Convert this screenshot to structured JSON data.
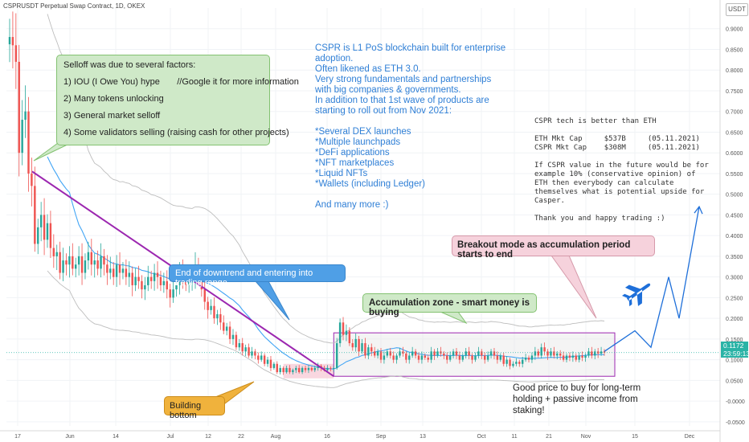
{
  "header": {
    "title": "CSPRUSDT Perpetual Swap Contract, 1D, OKEX"
  },
  "price_scale": {
    "currency": "USDT",
    "last_price": "0.1172",
    "countdown": "23:59:13"
  },
  "colors": {
    "up": "#26a69a",
    "down": "#ef5350",
    "trendline": "#9c27b0",
    "ma": "#42a5f5",
    "band": "#bdbdbd",
    "arrow": "#1e6fd9"
  },
  "annotations": {
    "selloff": {
      "title": "Selloff was due to several factors:",
      "items": [
        "1) IOU (I Owe You) hype       //Google it for more information",
        "2) Many tokens unlocking",
        "3) General market selloff",
        "4) Some validators selling (raising cash for other projects)"
      ]
    },
    "end_downtrend": "End of downtrend and entering into trading range",
    "building_bottom": "Building bottom",
    "accumulation": "Accumulation zone - smart money is buying",
    "breakout": "Breakout mode as accumulation period starts to end",
    "cspr_info": [
      "CSPR is L1 PoS blockchain built for enterprise",
      "adoption.",
      "Often likened as ETH 3.0.",
      "Very strong fundamentals and partnerships",
      "with big companies & governments.",
      "In addition to that 1st wave of products are",
      "starting to roll out from Nov 2021:",
      "",
      "*Several DEX launches",
      "*Multiple launchpads",
      "*DeFi applications",
      "*NFT marketplaces",
      "*Liquid NFTs",
      "*Wallets (including Ledger)",
      "",
      "And many more :)"
    ],
    "tech_note": [
      "CSPR tech is better than ETH",
      "",
      "ETH Mkt Cap     $537B     (05.11.2021)",
      "CSPR Mkt Cap    $308M     (05.11.2021)",
      "",
      "If CSPR value in the future would be for",
      "example 10% (conservative opinion) of",
      "ETH then everybody can calculate",
      "themselves what is potential upside for",
      "Casper.",
      "",
      "Thank you and happy trading :)"
    ],
    "good_price": [
      "Good price to buy for long-term",
      "holding + passive income from",
      "staking!"
    ]
  },
  "chart_data": {
    "type": "candlestick",
    "title": "CSPRUSDT Perpetual Swap Contract, 1D, OKEX",
    "x_ticks": [
      "17",
      "Jun",
      "14",
      "Jul",
      "12",
      "22",
      "Aug",
      "16",
      "Sep",
      "13",
      "Oct",
      "11",
      "21",
      "Nov",
      "15",
      "Dec"
    ],
    "y_ticks": [
      "0.9000",
      "0.8500",
      "0.8000",
      "0.7500",
      "0.7000",
      "0.6500",
      "0.6000",
      "0.5500",
      "0.5000",
      "0.4500",
      "0.4000",
      "0.3500",
      "0.3000",
      "0.2500",
      "0.2000",
      "0.1500",
      "0.1000",
      "0.0500",
      "-0.0000",
      "-0.0500"
    ],
    "ylim": [
      -0.06,
      0.95
    ],
    "last_price": 0.1172,
    "accumulation_range": [
      0.06,
      0.165
    ],
    "projection": [
      0.12,
      0.17,
      0.13,
      0.3,
      0.2,
      0.47
    ],
    "closes": [
      0.88,
      0.86,
      0.82,
      0.6,
      0.68,
      0.7,
      0.55,
      0.52,
      0.38,
      0.42,
      0.45,
      0.39,
      0.43,
      0.37,
      0.35,
      0.36,
      0.31,
      0.34,
      0.33,
      0.35,
      0.32,
      0.33,
      0.35,
      0.31,
      0.34,
      0.36,
      0.33,
      0.34,
      0.32,
      0.35,
      0.33,
      0.31,
      0.32,
      0.3,
      0.33,
      0.31,
      0.32,
      0.3,
      0.31,
      0.28,
      0.3,
      0.29,
      0.27,
      0.28,
      0.3,
      0.29,
      0.31,
      0.3,
      0.28,
      0.29,
      0.27,
      0.25,
      0.27,
      0.28,
      0.32,
      0.3,
      0.28,
      0.29,
      0.3,
      0.33,
      0.3,
      0.27,
      0.24,
      0.22,
      0.23,
      0.2,
      0.21,
      0.19,
      0.17,
      0.18,
      0.15,
      0.16,
      0.13,
      0.14,
      0.12,
      0.13,
      0.11,
      0.12,
      0.11,
      0.1,
      0.11,
      0.09,
      0.1,
      0.08,
      0.09,
      0.07,
      0.08,
      0.07,
      0.08,
      0.07,
      0.075,
      0.08,
      0.07,
      0.08,
      0.075,
      0.08,
      0.075,
      0.08,
      0.085,
      0.08,
      0.075,
      0.08,
      0.078,
      0.08,
      0.14,
      0.19,
      0.16,
      0.17,
      0.14,
      0.13,
      0.15,
      0.12,
      0.14,
      0.11,
      0.13,
      0.12,
      0.11,
      0.12,
      0.1,
      0.11,
      0.12,
      0.11,
      0.1,
      0.11,
      0.12,
      0.115,
      0.1,
      0.11,
      0.12,
      0.11,
      0.1,
      0.11,
      0.105,
      0.1,
      0.12,
      0.11,
      0.12,
      0.115,
      0.11,
      0.1,
      0.11,
      0.12,
      0.11,
      0.1,
      0.11,
      0.12,
      0.11,
      0.1,
      0.11,
      0.12,
      0.11,
      0.1,
      0.11,
      0.12,
      0.11,
      0.1,
      0.11,
      0.09,
      0.1,
      0.085,
      0.09,
      0.095,
      0.09,
      0.1,
      0.105,
      0.1,
      0.11,
      0.12,
      0.11,
      0.13,
      0.12,
      0.11,
      0.12,
      0.11,
      0.115,
      0.11,
      0.1,
      0.11,
      0.105,
      0.11,
      0.1,
      0.11,
      0.105,
      0.11,
      0.12,
      0.11,
      0.12,
      0.115,
      0.12,
      0.1172
    ]
  }
}
